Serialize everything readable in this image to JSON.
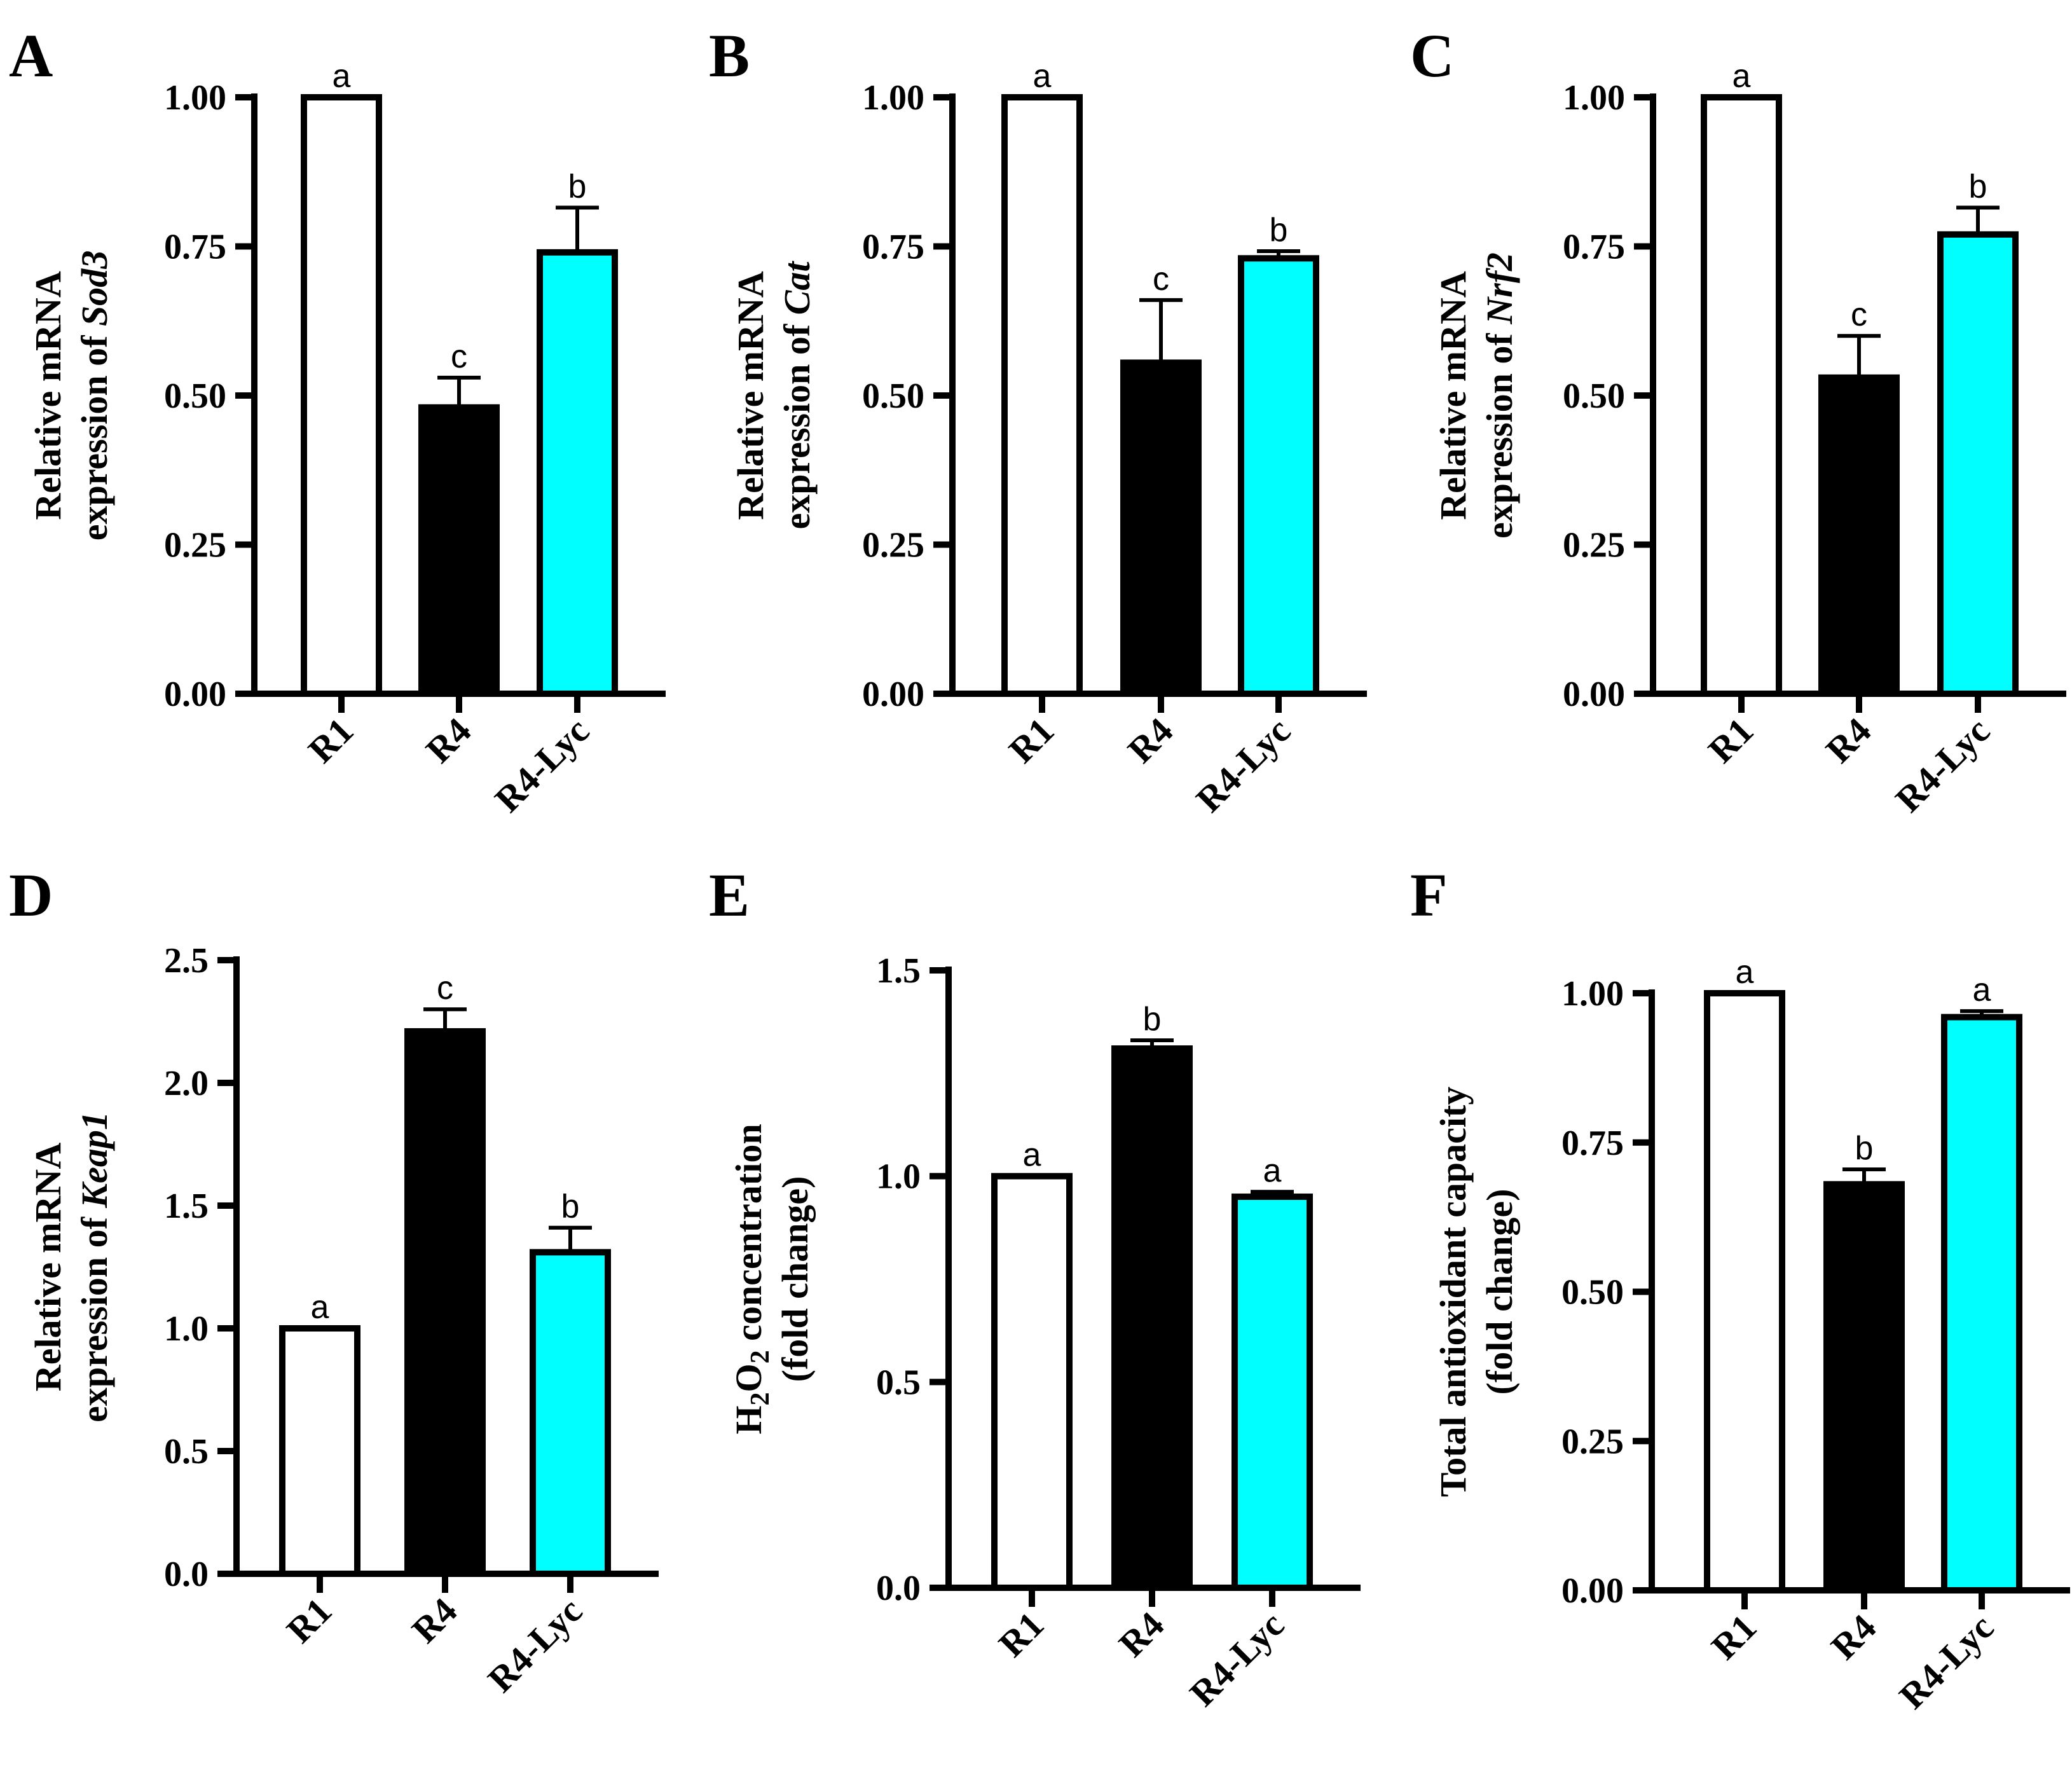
{
  "figure": {
    "colors": {
      "R1": "#ffffff",
      "R4": "#000000",
      "R4-Lyc": "#00ffff",
      "stroke": "#000000"
    }
  },
  "chart_data": [
    {
      "panel": "A",
      "type": "bar",
      "ylabel": {
        "line1": "Relative mRNA",
        "line2_prefix": "expression of ",
        "line2_italic": "Sod3"
      },
      "categories": [
        "R1",
        "R4",
        "R4-Lyc"
      ],
      "values": [
        1.0,
        0.48,
        0.74
      ],
      "errors": [
        0,
        0.05,
        0.075
      ],
      "significance": [
        "a",
        "c",
        "b"
      ],
      "ylim": [
        0,
        1.0
      ],
      "ticks": [
        0,
        0.25,
        0.5,
        0.75,
        1.0
      ],
      "tick_labels": [
        "0.00",
        "0.25",
        "0.50",
        "0.75",
        "1.00"
      ]
    },
    {
      "panel": "B",
      "type": "bar",
      "ylabel": {
        "line1": "Relative mRNA",
        "line2_prefix": "expression of ",
        "line2_italic": "Cat"
      },
      "categories": [
        "R1",
        "R4",
        "R4-Lyc"
      ],
      "values": [
        1.0,
        0.555,
        0.73
      ],
      "errors": [
        0,
        0.105,
        0.012
      ],
      "significance": [
        "a",
        "c",
        "b"
      ],
      "ylim": [
        0,
        1.0
      ],
      "ticks": [
        0,
        0.25,
        0.5,
        0.75,
        1.0
      ],
      "tick_labels": [
        "0.00",
        "0.25",
        "0.50",
        "0.75",
        "1.00"
      ]
    },
    {
      "panel": "C",
      "type": "bar",
      "ylabel": {
        "line1": "Relative mRNA",
        "line2_prefix": "expression of ",
        "line2_italic": "Nrf2"
      },
      "categories": [
        "R1",
        "R4",
        "R4-Lyc"
      ],
      "values": [
        1.0,
        0.53,
        0.77
      ],
      "errors": [
        0,
        0.07,
        0.045
      ],
      "significance": [
        "a",
        "c",
        "b"
      ],
      "ylim": [
        0,
        1.0
      ],
      "ticks": [
        0,
        0.25,
        0.5,
        0.75,
        1.0
      ],
      "tick_labels": [
        "0.00",
        "0.25",
        "0.50",
        "0.75",
        "1.00"
      ]
    },
    {
      "panel": "D",
      "type": "bar",
      "ylabel": {
        "line1": "Relative mRNA",
        "line2_prefix": "expression of ",
        "line2_italic": "Keap1"
      },
      "categories": [
        "R1",
        "R4",
        "R4-Lyc"
      ],
      "values": [
        1.0,
        2.21,
        1.31
      ],
      "errors": [
        0,
        0.09,
        0.1
      ],
      "significance": [
        "a",
        "c",
        "b"
      ],
      "ylim": [
        0,
        2.5
      ],
      "ticks": [
        0,
        0.5,
        1.0,
        1.5,
        2.0,
        2.5
      ],
      "tick_labels": [
        "0.0",
        "0.5",
        "1.0",
        "1.5",
        "2.0",
        "2.5"
      ]
    },
    {
      "panel": "E",
      "type": "bar",
      "ylabel": {
        "h2o2_H": "H",
        "h2o2_sub1": "2",
        "h2o2_O": "O",
        "h2o2_sub2": "2",
        "h2o2_rest": " concentration",
        "line2": "(fold change)"
      },
      "categories": [
        "R1",
        "R4",
        "R4-Lyc"
      ],
      "values": [
        1.0,
        1.31,
        0.95
      ],
      "errors": [
        0,
        0.02,
        0.012
      ],
      "significance": [
        "a",
        "b",
        "a"
      ],
      "ylim": [
        0,
        1.5
      ],
      "ticks": [
        0,
        0.5,
        1.0,
        1.5
      ],
      "tick_labels": [
        "0.0",
        "0.5",
        "1.0",
        "1.5"
      ]
    },
    {
      "panel": "F",
      "type": "bar",
      "ylabel": {
        "line1": "Total antioxidant capacity",
        "line2": "(fold change)"
      },
      "categories": [
        "R1",
        "R4",
        "R4-Lyc"
      ],
      "values": [
        1.0,
        0.68,
        0.96
      ],
      "errors": [
        0,
        0.025,
        0.01
      ],
      "significance": [
        "a",
        "b",
        "a"
      ],
      "ylim": [
        0,
        1.0
      ],
      "ticks": [
        0,
        0.25,
        0.5,
        0.75,
        1.0
      ],
      "tick_labels": [
        "0.00",
        "0.25",
        "0.50",
        "0.75",
        "1.00"
      ]
    }
  ]
}
